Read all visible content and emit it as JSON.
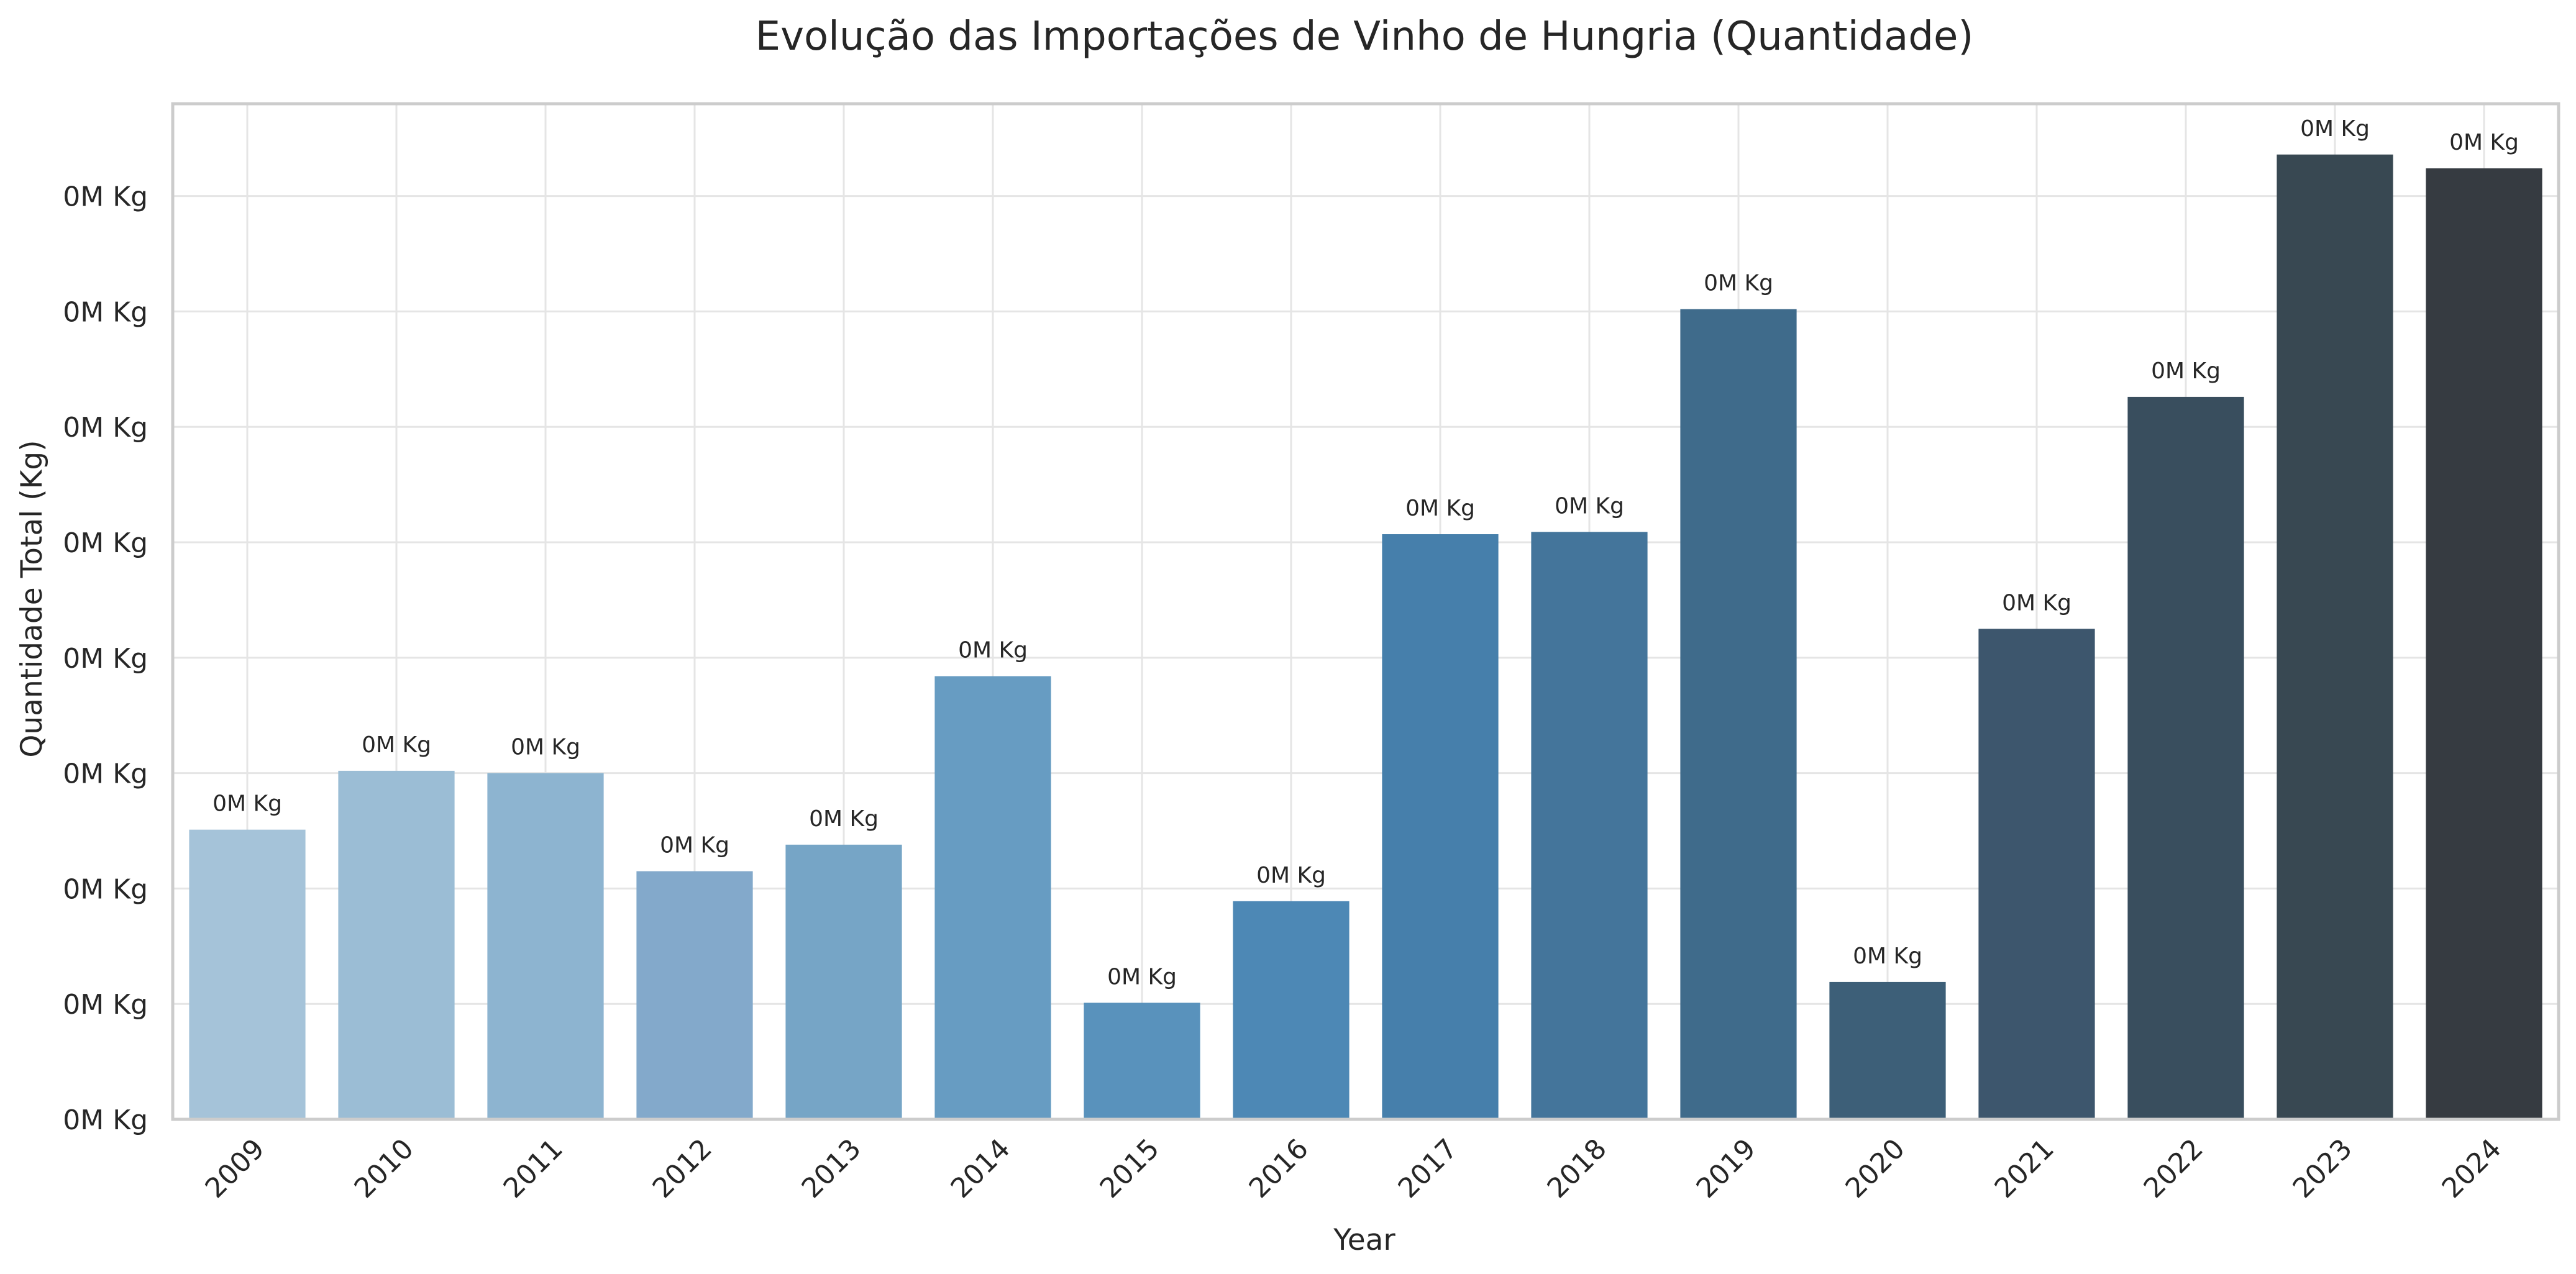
{
  "chart_data": {
    "type": "bar",
    "title": "Evolução das Importações de Vinho de Hungria (Quantidade)",
    "xlabel": "Year",
    "ylabel": "Quantidade Total (Kg)",
    "categories": [
      "2009",
      "2010",
      "2011",
      "2012",
      "2013",
      "2014",
      "2015",
      "2016",
      "2017",
      "2018",
      "2019",
      "2020",
      "2021",
      "2022",
      "2023",
      "2024"
    ],
    "values": [
      2.51,
      3.02,
      3.0,
      2.15,
      2.38,
      3.84,
      1.01,
      1.89,
      5.07,
      5.09,
      7.02,
      1.19,
      4.25,
      6.26,
      8.36,
      8.24
    ],
    "value_labels": [
      "0M Kg",
      "0M Kg",
      "0M Kg",
      "0M Kg",
      "0M Kg",
      "0M Kg",
      "0M Kg",
      "0M Kg",
      "0M Kg",
      "0M Kg",
      "0M Kg",
      "0M Kg",
      "0M Kg",
      "0M Kg",
      "0M Kg",
      "0M Kg"
    ],
    "colors": [
      "#a5c3d9",
      "#9bbdd5",
      "#8db4d0",
      "#83a9cb",
      "#76a5c6",
      "#679cc2",
      "#5992bc",
      "#4d88b5",
      "#467fab",
      "#44759b",
      "#3f6b8b",
      "#3d5f78",
      "#3d566d",
      "#394e5e",
      "#384852",
      "#363b41"
    ],
    "yticks": [
      0,
      1,
      2,
      3,
      4,
      5,
      6,
      7,
      8
    ],
    "ytick_labels": [
      "0M Kg",
      "0M Kg",
      "0M Kg",
      "0M Kg",
      "0M Kg",
      "0M Kg",
      "0M Kg",
      "0M Kg",
      "0M Kg"
    ],
    "ylim": [
      0,
      8.8
    ],
    "grid": true,
    "style": {
      "background": "#ffffff",
      "grid_color": "#e5e5e5",
      "spine_color": "#cccccc",
      "text_color": "#262626"
    }
  }
}
